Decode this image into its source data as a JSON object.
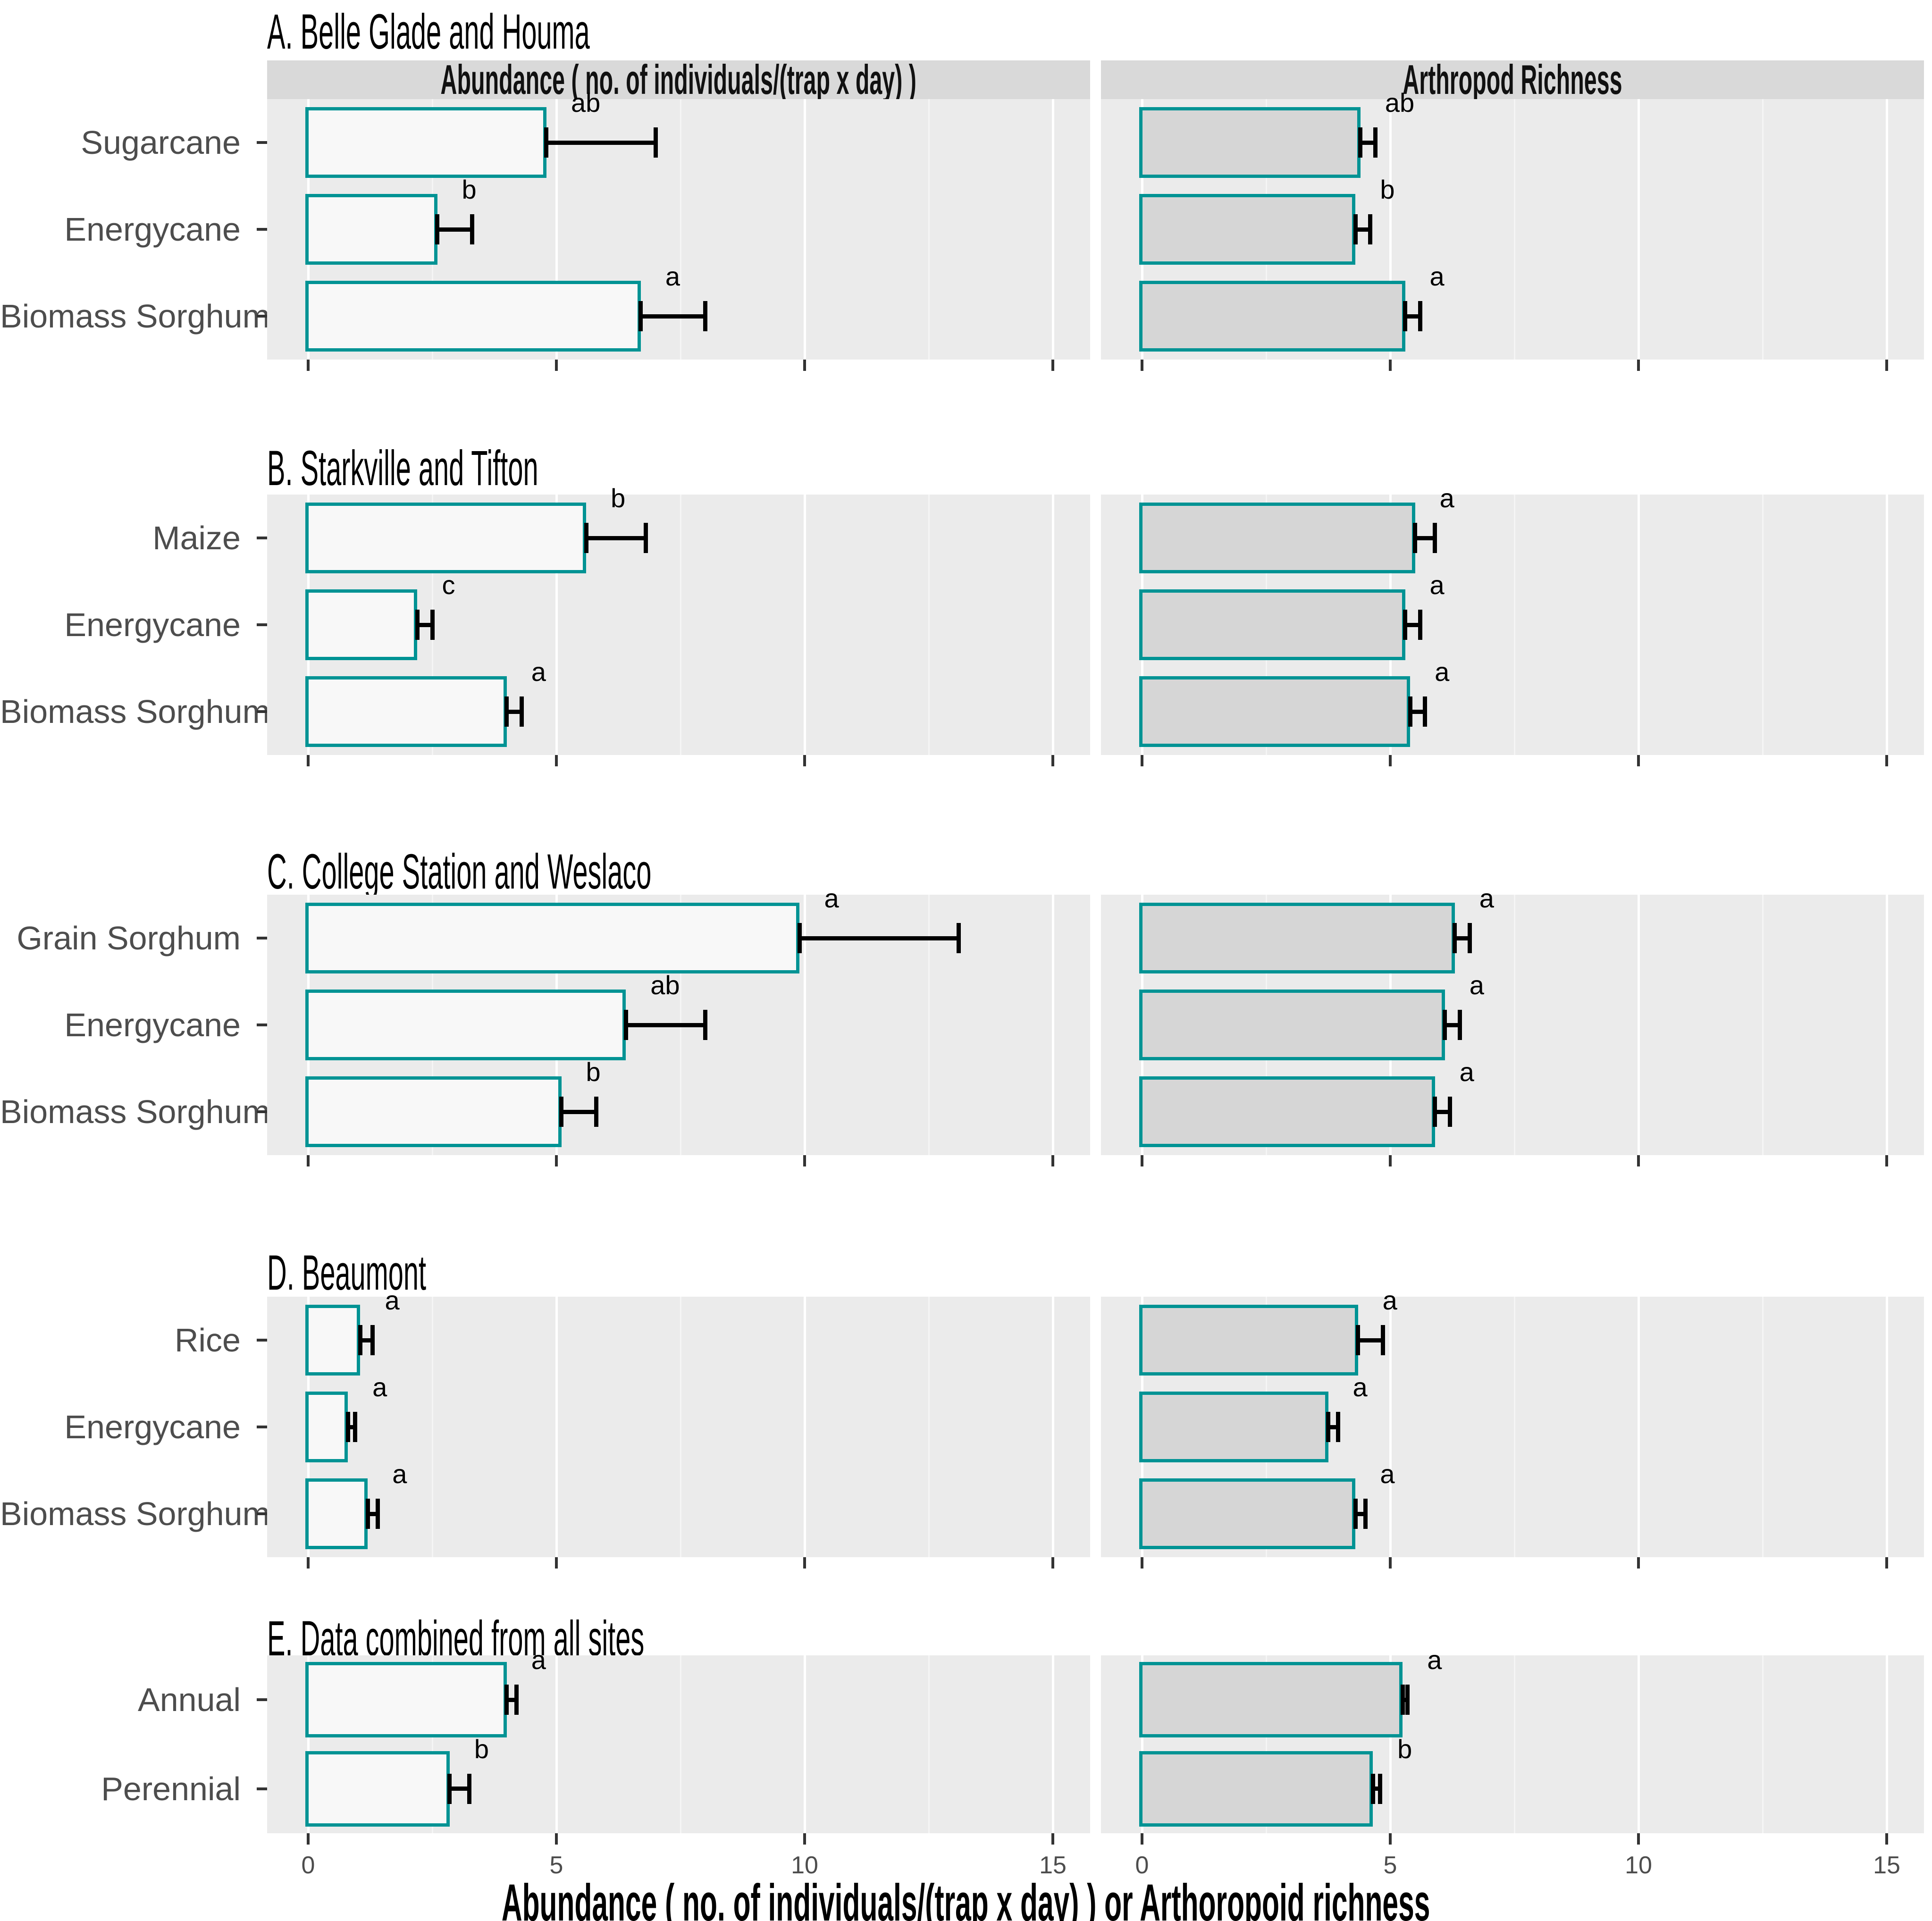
{
  "figure": {
    "column_headers": {
      "abundance": "Abundance ( no. of individuals/(trap x day) )",
      "richness": "Arthropod Richness"
    },
    "x_axis": {
      "title": "Abundance ( no. of individuals/(trap x day) ) or Arthoropoid richness",
      "tick_labels": [
        "0",
        "5",
        "10",
        "15"
      ],
      "ticks": [
        0,
        5,
        10,
        15
      ],
      "minor_gridlines": [
        2.5,
        7.5,
        12.5
      ],
      "limit": [
        0,
        15
      ]
    },
    "colors": {
      "bar_border": "#009394",
      "abundance_bar_fill": "#F8F8F8",
      "richness_bar_fill": "#D6D6D6",
      "panel_background": "#EBEBEB",
      "strip_background": "#D9D9D9",
      "error_bar": "#000000",
      "axis_text": "#4d4d4d"
    }
  },
  "chart_data": [
    {
      "type": "bar",
      "orientation": "horizontal",
      "panel": "A",
      "title": "A. Belle Glade and Houma",
      "categories": [
        "Sugarcane",
        "Energycane",
        "Biomass Sorghum"
      ],
      "xlim": [
        0,
        15
      ],
      "show_column_headers": true,
      "series": [
        {
          "name": "Abundance ( no. of individuals/(trap x day) )",
          "values": [
            4.8,
            2.6,
            6.7
          ],
          "upper": [
            7.0,
            3.3,
            8.0
          ],
          "sig_letters": [
            "ab",
            "b",
            "a"
          ]
        },
        {
          "name": "Arthropod Richness",
          "values": [
            4.4,
            4.3,
            5.3
          ],
          "upper": [
            4.7,
            4.6,
            5.6
          ],
          "sig_letters": [
            "ab",
            "b",
            "a"
          ]
        }
      ]
    },
    {
      "type": "bar",
      "orientation": "horizontal",
      "panel": "B",
      "title": "B. Starkville and Tifton",
      "categories": [
        "Maize",
        "Energycane",
        "Biomass Sorghum"
      ],
      "xlim": [
        0,
        15
      ],
      "show_column_headers": false,
      "series": [
        {
          "name": "Abundance ( no. of individuals/(trap x day) )",
          "values": [
            5.6,
            2.2,
            4.0
          ],
          "upper": [
            6.8,
            2.5,
            4.3
          ],
          "sig_letters": [
            "b",
            "c",
            "a"
          ]
        },
        {
          "name": "Arthropod Richness",
          "values": [
            5.5,
            5.3,
            5.4
          ],
          "upper": [
            5.9,
            5.6,
            5.7
          ],
          "sig_letters": [
            "a",
            "a",
            "a"
          ]
        }
      ]
    },
    {
      "type": "bar",
      "orientation": "horizontal",
      "panel": "C",
      "title": "C. College Station and Weslaco",
      "categories": [
        "Grain Sorghum",
        "Energycane",
        "Biomass Sorghum"
      ],
      "xlim": [
        0,
        15
      ],
      "show_column_headers": false,
      "series": [
        {
          "name": "Abundance ( no. of individuals/(trap x day) )",
          "values": [
            9.9,
            6.4,
            5.1
          ],
          "upper": [
            13.1,
            8.0,
            5.8
          ],
          "sig_letters": [
            "a",
            "ab",
            "b"
          ]
        },
        {
          "name": "Arthropod Richness",
          "values": [
            6.3,
            6.1,
            5.9
          ],
          "upper": [
            6.6,
            6.4,
            6.2
          ],
          "sig_letters": [
            "a",
            "a",
            "a"
          ]
        }
      ]
    },
    {
      "type": "bar",
      "orientation": "horizontal",
      "panel": "D",
      "title": "D. Beaumont",
      "categories": [
        "Rice",
        "Energycane",
        "Biomass Sorghum"
      ],
      "xlim": [
        0,
        15
      ],
      "show_column_headers": false,
      "series": [
        {
          "name": "Abundance ( no. of individuals/(trap x day) )",
          "values": [
            1.05,
            0.8,
            1.2
          ],
          "upper": [
            1.3,
            0.95,
            1.4
          ],
          "sig_letters": [
            "a",
            "a",
            "a"
          ]
        },
        {
          "name": "Arthropod Richness",
          "values": [
            4.35,
            3.75,
            4.3
          ],
          "upper": [
            4.85,
            3.95,
            4.5
          ],
          "sig_letters": [
            "a",
            "a",
            "a"
          ]
        }
      ]
    },
    {
      "type": "bar",
      "orientation": "horizontal",
      "panel": "E",
      "title": "E. Data combined from all sites",
      "categories": [
        "Annual",
        "Perennial"
      ],
      "xlim": [
        0,
        15
      ],
      "show_column_headers": false,
      "series": [
        {
          "name": "Abundance ( no. of individuals/(trap x day) )",
          "values": [
            4.0,
            2.85
          ],
          "upper": [
            4.2,
            3.25
          ],
          "sig_letters": [
            "a",
            "b"
          ]
        },
        {
          "name": "Arthropod Richness",
          "values": [
            5.25,
            4.65
          ],
          "upper": [
            5.35,
            4.8
          ],
          "sig_letters": [
            "a",
            "b"
          ]
        }
      ]
    }
  ]
}
